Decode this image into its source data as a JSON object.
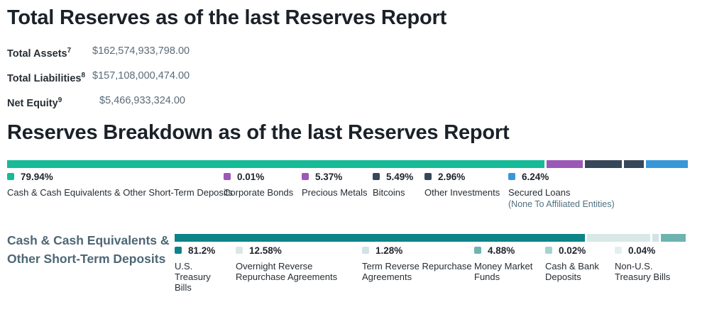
{
  "page": {
    "section1_title": "Total Reserves as of the last Reserves Report",
    "section2_title": "Reserves Breakdown as of the last Reserves Report"
  },
  "totals": [
    {
      "label": "Total Assets",
      "sup": "7",
      "value": "$162,574,933,798.00"
    },
    {
      "label": "Total Liabilities",
      "sup": "8",
      "value": "$157,108,000,474.00"
    },
    {
      "label": "Net Equity",
      "sup": "9",
      "value": "$5,466,933,324.00"
    }
  ],
  "breakdown": {
    "items": [
      {
        "pct": "79.94%",
        "value": 79.94,
        "label": "Cash & Cash Equivalents & Other Short-Term Deposits",
        "color": "#16ba97"
      },
      {
        "pct": "0.01%",
        "value": 0.01,
        "label": "Corporate Bonds",
        "color": "#9b58b6"
      },
      {
        "pct": "5.37%",
        "value": 5.37,
        "label": "Precious Metals",
        "color": "#9b58b6"
      },
      {
        "pct": "5.49%",
        "value": 5.49,
        "label": "Bitcoins",
        "color": "#37475b"
      },
      {
        "pct": "2.96%",
        "value": 2.96,
        "label": "Other Investments",
        "color": "#37475b"
      },
      {
        "pct": "6.24%",
        "value": 6.24,
        "label": "Secured Loans",
        "sublabel": "(None To Affiliated Entities)",
        "color": "#3897d8"
      }
    ]
  },
  "cash_breakdown": {
    "heading": "Cash & Cash Equivalents & Other Short-Term Deposits",
    "items": [
      {
        "pct": "81.2%",
        "value": 81.2,
        "label": "U.S. Treasury Bills",
        "color": "#0d8488"
      },
      {
        "pct": "12.58%",
        "value": 12.58,
        "label": "Overnight Reverse Repurchase Agreements",
        "color": "#d8e8e6"
      },
      {
        "pct": "1.28%",
        "value": 1.28,
        "label": "Term Reverse Repurchase Agreements",
        "color": "#d2e3e7"
      },
      {
        "pct": "4.88%",
        "value": 4.88,
        "label": "Money Market Funds",
        "color": "#6db4b1"
      },
      {
        "pct": "0.02%",
        "value": 0.02,
        "label": "Cash & Bank Deposits",
        "color": "#a5d3d1"
      },
      {
        "pct": "0.04%",
        "value": 0.04,
        "label": "Non-U.S. Treasury Bills",
        "color": "#e2eff1"
      }
    ]
  },
  "chart_data": [
    {
      "type": "bar",
      "layout": "horizontal-stacked",
      "title": "Reserves Breakdown as of the last Reserves Report",
      "categories": [
        "Cash & Cash Equivalents & Other Short-Term Deposits",
        "Corporate Bonds",
        "Precious Metals",
        "Bitcoins",
        "Other Investments",
        "Secured Loans (None To Affiliated Entities)"
      ],
      "values": [
        79.94,
        0.01,
        5.37,
        5.49,
        2.96,
        6.24
      ],
      "unit": "%",
      "colors": [
        "#16ba97",
        "#9b58b6",
        "#9b58b6",
        "#37475b",
        "#37475b",
        "#3897d8"
      ],
      "legend_position": "below"
    },
    {
      "type": "bar",
      "layout": "horizontal-stacked",
      "title": "Cash & Cash Equivalents & Other Short-Term Deposits",
      "categories": [
        "U.S. Treasury Bills",
        "Overnight Reverse Repurchase Agreements",
        "Term Reverse Repurchase Agreements",
        "Money Market Funds",
        "Cash & Bank Deposits",
        "Non-U.S. Treasury Bills"
      ],
      "values": [
        81.2,
        12.58,
        1.28,
        4.88,
        0.02,
        0.04
      ],
      "unit": "%",
      "colors": [
        "#0d8488",
        "#d8e8e6",
        "#d2e3e7",
        "#6db4b1",
        "#a5d3d1",
        "#e2eff1"
      ],
      "legend_position": "below"
    }
  ]
}
